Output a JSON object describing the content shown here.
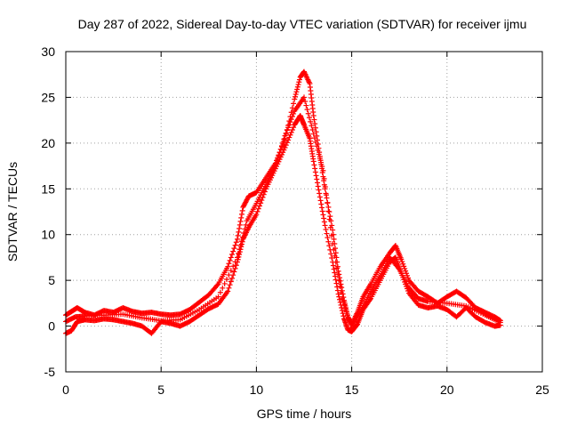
{
  "chart_data": {
    "type": "scatter",
    "title": "Day 287 of 2022, Sidereal Day-to-day VTEC variation (SDTVAR) for receiver ijmu",
    "xlabel": "GPS time / hours",
    "ylabel": "SDTVAR / TECUs",
    "xlim": [
      0,
      25
    ],
    "ylim": [
      -5,
      30
    ],
    "xticks": [
      0,
      5,
      10,
      15,
      20,
      25
    ],
    "yticks": [
      -5,
      0,
      5,
      10,
      15,
      20,
      25,
      30
    ],
    "xtick_labels": [
      "0",
      "5",
      "10",
      "15",
      "20",
      "25"
    ],
    "ytick_labels": [
      "-5",
      "0",
      "5",
      "10",
      "15",
      "20",
      "25",
      "30"
    ],
    "grid": true,
    "marker": "+",
    "color": "#ff0000",
    "series": [
      {
        "name": "upper envelope",
        "x": [
          0.0,
          0.3,
          0.6,
          1.0,
          1.5,
          2.0,
          2.5,
          3.0,
          3.5,
          4.0,
          4.5,
          5.0,
          5.5,
          6.0,
          6.5,
          7.0,
          7.5,
          8.0,
          8.5,
          9.0,
          9.3,
          9.6,
          10.0,
          10.5,
          11.0,
          11.5,
          12.0,
          12.3,
          12.5,
          12.8,
          13.0,
          13.3,
          13.6,
          14.0,
          14.3,
          14.6,
          14.8,
          15.0,
          15.3,
          15.6,
          16.0,
          16.5,
          17.0,
          17.3,
          17.6,
          18.0,
          18.5,
          19.0,
          19.5,
          20.0,
          20.5,
          21.0,
          21.5,
          22.0,
          22.5,
          22.8
        ],
        "y": [
          1.2,
          1.6,
          2.0,
          1.5,
          1.2,
          1.7,
          1.5,
          2.0,
          1.6,
          1.4,
          1.5,
          1.3,
          1.2,
          1.3,
          1.8,
          2.6,
          3.4,
          4.6,
          6.5,
          9.5,
          13.0,
          14.2,
          14.6,
          16.2,
          17.8,
          20.5,
          24.8,
          27.2,
          27.8,
          26.5,
          23.0,
          19.0,
          15.0,
          10.5,
          6.0,
          2.8,
          1.0,
          0.2,
          1.5,
          3.2,
          4.6,
          6.5,
          8.0,
          8.8,
          7.3,
          5.0,
          3.8,
          3.2,
          2.5,
          3.2,
          3.8,
          3.1,
          2.0,
          1.5,
          1.0,
          0.6
        ]
      },
      {
        "name": "lower envelope",
        "x": [
          0.0,
          0.3,
          0.6,
          1.0,
          1.5,
          2.0,
          2.5,
          3.0,
          3.5,
          4.0,
          4.5,
          5.0,
          5.5,
          6.0,
          6.5,
          7.0,
          7.5,
          8.0,
          8.5,
          9.0,
          9.3,
          9.6,
          10.0,
          10.5,
          11.0,
          11.5,
          12.0,
          12.3,
          12.5,
          12.8,
          13.0,
          13.3,
          13.6,
          14.0,
          14.3,
          14.6,
          14.8,
          15.0,
          15.3,
          15.6,
          16.0,
          16.5,
          17.0,
          17.3,
          17.6,
          18.0,
          18.5,
          19.0,
          19.5,
          20.0,
          20.5,
          21.0,
          21.5,
          22.0,
          22.5,
          22.8
        ],
        "y": [
          -0.8,
          -0.5,
          0.5,
          0.7,
          0.6,
          0.8,
          0.7,
          0.5,
          0.3,
          0.0,
          -0.8,
          0.5,
          0.3,
          0.0,
          0.5,
          1.2,
          1.9,
          2.4,
          3.8,
          7.0,
          9.5,
          10.8,
          12.2,
          15.0,
          17.2,
          19.5,
          22.0,
          23.0,
          22.0,
          20.5,
          18.0,
          14.5,
          11.0,
          7.0,
          3.5,
          0.8,
          -0.4,
          -0.6,
          0.2,
          1.8,
          3.0,
          5.0,
          7.0,
          7.5,
          5.8,
          3.6,
          2.3,
          2.0,
          2.2,
          1.8,
          1.0,
          2.0,
          1.0,
          0.4,
          0.0,
          0.1
        ]
      },
      {
        "name": "central trace",
        "x": [
          0.0,
          0.5,
          1.0,
          2.0,
          3.0,
          4.0,
          5.0,
          6.0,
          7.0,
          8.0,
          9.0,
          9.5,
          10.0,
          10.5,
          11.0,
          11.5,
          12.0,
          12.5,
          13.0,
          13.5,
          14.0,
          14.5,
          15.0,
          15.5,
          16.0,
          16.5,
          17.0,
          17.5,
          18.0,
          18.5,
          19.0,
          20.0,
          21.0,
          22.0,
          22.8
        ],
        "y": [
          0.5,
          1.0,
          1.1,
          1.2,
          1.3,
          0.9,
          0.6,
          0.7,
          1.8,
          3.2,
          7.5,
          11.5,
          13.4,
          15.5,
          17.5,
          20.8,
          23.5,
          25.0,
          21.0,
          17.0,
          9.0,
          3.0,
          -0.2,
          1.8,
          3.8,
          5.5,
          7.5,
          6.2,
          4.2,
          3.0,
          2.7,
          2.5,
          2.2,
          1.2,
          0.4
        ]
      }
    ]
  }
}
